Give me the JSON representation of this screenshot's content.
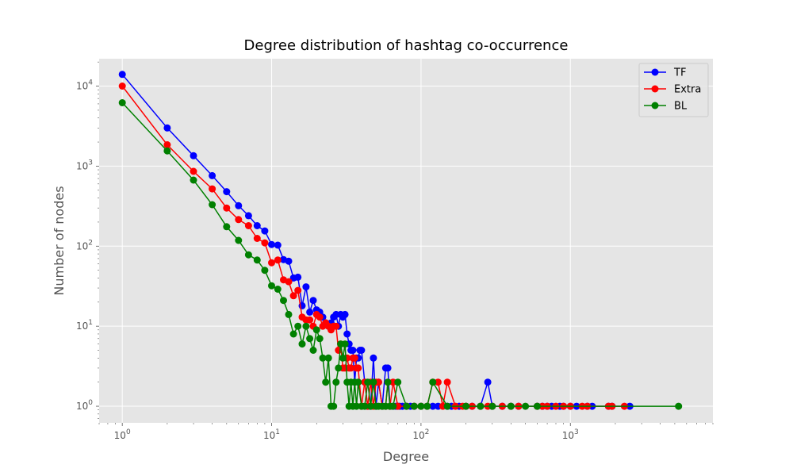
{
  "chart_data": {
    "type": "line",
    "title": "Degree distribution of hashtag co-occurrence",
    "xlabel": "Degree",
    "ylabel": "Number of nodes",
    "xscale": "log",
    "yscale": "log",
    "xlim": [
      0.7,
      9000
    ],
    "ylim": [
      0.62,
      22000
    ],
    "grid": true,
    "legend_position": "top-right",
    "background": "#e5e5e5",
    "x_ticks": [
      {
        "value": 1,
        "base": "10",
        "exp": "0"
      },
      {
        "value": 10,
        "base": "10",
        "exp": "1"
      },
      {
        "value": 100,
        "base": "10",
        "exp": "2"
      },
      {
        "value": 1000,
        "base": "10",
        "exp": "3"
      }
    ],
    "y_ticks": [
      {
        "value": 1,
        "base": "10",
        "exp": "0"
      },
      {
        "value": 10,
        "base": "10",
        "exp": "1"
      },
      {
        "value": 100,
        "base": "10",
        "exp": "2"
      },
      {
        "value": 1000,
        "base": "10",
        "exp": "3"
      },
      {
        "value": 10000,
        "base": "10",
        "exp": "4"
      }
    ],
    "series": [
      {
        "name": "TF",
        "color": "#0000ff",
        "x": [
          1,
          2,
          3,
          4,
          5,
          6,
          7,
          8,
          9,
          10,
          11,
          12,
          13,
          14,
          15,
          16,
          17,
          18,
          19,
          20,
          21,
          22,
          23,
          24,
          25,
          26,
          27,
          28,
          29,
          30,
          31,
          32,
          33,
          34,
          35,
          36,
          37,
          38,
          39,
          40,
          42,
          44,
          46,
          48,
          50,
          52,
          55,
          58,
          60,
          62,
          65,
          68,
          70,
          72,
          75,
          80,
          85,
          90,
          100,
          110,
          120,
          130,
          150,
          160,
          180,
          200,
          220,
          250,
          280,
          300,
          350,
          400,
          450,
          600,
          650,
          700,
          750,
          850,
          900,
          1000,
          1100,
          1300,
          1400,
          1800,
          1900,
          2500
        ],
        "y": [
          14000,
          3000,
          1350,
          760,
          480,
          320,
          240,
          180,
          155,
          105,
          103,
          68,
          65,
          40,
          41,
          18,
          31,
          15,
          21,
          16,
          15,
          13,
          11,
          10,
          11,
          13,
          14,
          10,
          14,
          13,
          14,
          8,
          6,
          5,
          5,
          2,
          4,
          4,
          5,
          5,
          2,
          1,
          1,
          4,
          1,
          2,
          1,
          3,
          3,
          1,
          1,
          1,
          1,
          1,
          1,
          1,
          1,
          1,
          1,
          1,
          1,
          1,
          1,
          1,
          1,
          1,
          1,
          1,
          2,
          1,
          1,
          1,
          1,
          1,
          1,
          1,
          1,
          1,
          1,
          1,
          1,
          1,
          1,
          1,
          1,
          1
        ]
      },
      {
        "name": "Extra",
        "color": "#ff0000",
        "x": [
          1,
          2,
          3,
          4,
          5,
          6,
          7,
          8,
          9,
          10,
          11,
          12,
          13,
          14,
          15,
          16,
          17,
          18,
          19,
          20,
          21,
          22,
          23,
          24,
          25,
          26,
          27,
          28,
          29,
          30,
          31,
          32,
          33,
          34,
          35,
          36,
          37,
          38,
          40,
          42,
          44,
          46,
          48,
          50,
          52,
          55,
          58,
          60,
          62,
          65,
          70,
          80,
          90,
          100,
          110,
          120,
          130,
          140,
          150,
          170,
          190,
          200,
          220,
          250,
          280,
          300,
          350,
          400,
          450,
          600,
          650,
          700,
          800,
          900,
          1000,
          1200,
          1300,
          1800,
          1900,
          2300
        ],
        "y": [
          10000,
          1850,
          860,
          520,
          300,
          215,
          180,
          125,
          110,
          62,
          67,
          38,
          36,
          24,
          28,
          13,
          12,
          12,
          10,
          14,
          13,
          10,
          11,
          10,
          9,
          10,
          10,
          5,
          6,
          3,
          3,
          4,
          3,
          3,
          4,
          4,
          3,
          3,
          1,
          2,
          1,
          2,
          1,
          2,
          2,
          1,
          1,
          2,
          1,
          2,
          1,
          1,
          1,
          1,
          1,
          2,
          2,
          1,
          2,
          1,
          1,
          1,
          1,
          1,
          1,
          1,
          1,
          1,
          1,
          1,
          1,
          1,
          1,
          1,
          1,
          1,
          1,
          1,
          1,
          1
        ]
      },
      {
        "name": "BL",
        "color": "#008000",
        "x": [
          1,
          2,
          3,
          4,
          5,
          6,
          7,
          8,
          9,
          10,
          11,
          12,
          13,
          14,
          15,
          16,
          17,
          18,
          19,
          20,
          21,
          22,
          23,
          24,
          25,
          26,
          27,
          28,
          29,
          30,
          31,
          32,
          33,
          34,
          35,
          36,
          37,
          38,
          40,
          42,
          44,
          46,
          48,
          50,
          52,
          55,
          58,
          60,
          62,
          65,
          70,
          80,
          90,
          100,
          110,
          120,
          150,
          200,
          250,
          300,
          400,
          500,
          600,
          5300
        ],
        "y": [
          6200,
          1550,
          670,
          330,
          175,
          118,
          78,
          67,
          50,
          32,
          29,
          21,
          14,
          8,
          10,
          6,
          10,
          7,
          5,
          9,
          7,
          4,
          2,
          4,
          1,
          1,
          2,
          3,
          6,
          4,
          6,
          2,
          1,
          2,
          1,
          2,
          1,
          2,
          1,
          1,
          2,
          1,
          2,
          1,
          1,
          1,
          1,
          2,
          1,
          1,
          2,
          1,
          1,
          1,
          1,
          2,
          1,
          1,
          1,
          1,
          1,
          1,
          1,
          1
        ]
      }
    ]
  }
}
